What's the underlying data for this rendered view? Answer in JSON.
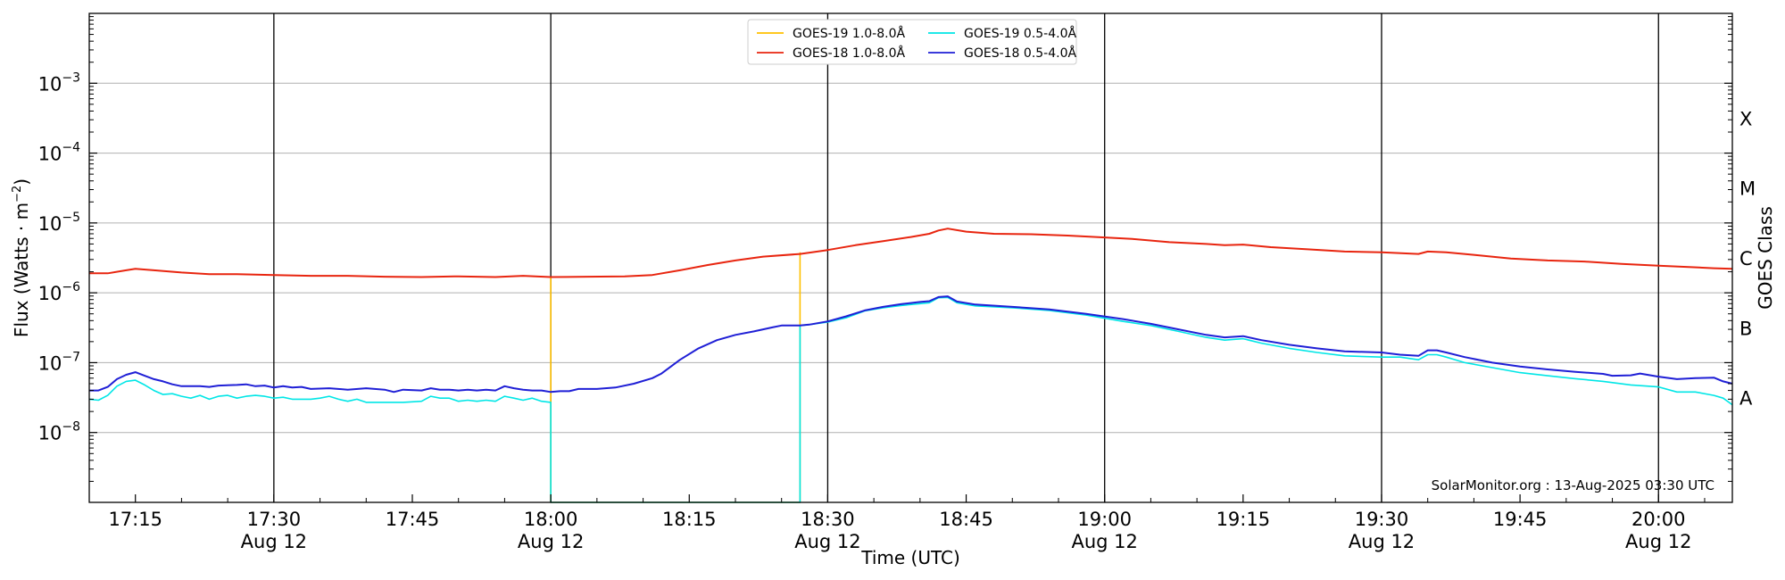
{
  "chart_data": {
    "type": "line",
    "xlabel": "Time (UTC)",
    "ylabel_base": "Flux (Watts · m",
    "ylabel_exp": "−2",
    "ylabel_close": ")",
    "y2label": "GOES Class",
    "x_range_min": [
      1030,
      1208
    ],
    "ylim_log10": [
      -9,
      -2
    ],
    "y_scale": "log",
    "grid": "horizontal",
    "legend_placement": "top-center",
    "watermark": "SolarMonitor.org : 13-Aug-2025 03:30 UTC",
    "x_ticks": [
      {
        "t": 1035,
        "label": "17:15",
        "sub": ""
      },
      {
        "t": 1050,
        "label": "17:30",
        "sub": "Aug 12"
      },
      {
        "t": 1065,
        "label": "17:45",
        "sub": ""
      },
      {
        "t": 1080,
        "label": "18:00",
        "sub": "Aug 12"
      },
      {
        "t": 1095,
        "label": "18:15",
        "sub": ""
      },
      {
        "t": 1110,
        "label": "18:30",
        "sub": "Aug 12"
      },
      {
        "t": 1125,
        "label": "18:45",
        "sub": ""
      },
      {
        "t": 1140,
        "label": "19:00",
        "sub": "Aug 12"
      },
      {
        "t": 1155,
        "label": "19:15",
        "sub": ""
      },
      {
        "t": 1170,
        "label": "19:30",
        "sub": "Aug 12"
      },
      {
        "t": 1185,
        "label": "19:45",
        "sub": ""
      },
      {
        "t": 1200,
        "label": "20:00",
        "sub": "Aug 12"
      }
    ],
    "vlines_min": [
      1050,
      1080,
      1110,
      1140,
      1170,
      1200
    ],
    "y_ticks": [
      {
        "exp": -8,
        "label": "−8"
      },
      {
        "exp": -7,
        "label": "−7"
      },
      {
        "exp": -6,
        "label": "−6"
      },
      {
        "exp": -5,
        "label": "−5"
      },
      {
        "exp": -4,
        "label": "−4"
      },
      {
        "exp": -3,
        "label": "−3"
      }
    ],
    "classes": [
      {
        "label": "A",
        "exp": -7.5
      },
      {
        "label": "B",
        "exp": -6.5
      },
      {
        "label": "C",
        "exp": -5.5
      },
      {
        "label": "M",
        "exp": -4.5
      },
      {
        "label": "X",
        "exp": -3.5
      }
    ],
    "series": [
      {
        "name": "GOES-19 1.0-8.0Å",
        "color": "#FFC000",
        "points": [
          [
            1080,
            1.7e-06
          ],
          [
            1080,
            1e-09
          ],
          [
            1107,
            1e-09
          ],
          [
            1107,
            3.8e-06
          ]
        ]
      },
      {
        "name": "GOES-18 1.0-8.0Å",
        "color": "#E8250F",
        "points": [
          [
            1030,
            1.9e-06
          ],
          [
            1032,
            1.9e-06
          ],
          [
            1034,
            2.1e-06
          ],
          [
            1035,
            2.2e-06
          ],
          [
            1037,
            2.1e-06
          ],
          [
            1040,
            1.95e-06
          ],
          [
            1043,
            1.85e-06
          ],
          [
            1046,
            1.85e-06
          ],
          [
            1050,
            1.8e-06
          ],
          [
            1054,
            1.75e-06
          ],
          [
            1058,
            1.75e-06
          ],
          [
            1062,
            1.7e-06
          ],
          [
            1066,
            1.68e-06
          ],
          [
            1070,
            1.72e-06
          ],
          [
            1074,
            1.68e-06
          ],
          [
            1077,
            1.75e-06
          ],
          [
            1080,
            1.68e-06
          ],
          [
            1084,
            1.7e-06
          ],
          [
            1088,
            1.72e-06
          ],
          [
            1091,
            1.8e-06
          ],
          [
            1094,
            2.1e-06
          ],
          [
            1097,
            2.5e-06
          ],
          [
            1100,
            2.9e-06
          ],
          [
            1103,
            3.3e-06
          ],
          [
            1107,
            3.6e-06
          ],
          [
            1110,
            4.1e-06
          ],
          [
            1113,
            4.8e-06
          ],
          [
            1116,
            5.5e-06
          ],
          [
            1119,
            6.3e-06
          ],
          [
            1121,
            7e-06
          ],
          [
            1122,
            7.8e-06
          ],
          [
            1123,
            8.3e-06
          ],
          [
            1125,
            7.5e-06
          ],
          [
            1128,
            7e-06
          ],
          [
            1132,
            6.9e-06
          ],
          [
            1136,
            6.6e-06
          ],
          [
            1140,
            6.2e-06
          ],
          [
            1143,
            5.9e-06
          ],
          [
            1147,
            5.3e-06
          ],
          [
            1151,
            5e-06
          ],
          [
            1153,
            4.8e-06
          ],
          [
            1155,
            4.9e-06
          ],
          [
            1158,
            4.5e-06
          ],
          [
            1162,
            4.2e-06
          ],
          [
            1166,
            3.9e-06
          ],
          [
            1170,
            3.8e-06
          ],
          [
            1174,
            3.6e-06
          ],
          [
            1175,
            3.9e-06
          ],
          [
            1177,
            3.8e-06
          ],
          [
            1180,
            3.5e-06
          ],
          [
            1184,
            3.1e-06
          ],
          [
            1188,
            2.9e-06
          ],
          [
            1192,
            2.8e-06
          ],
          [
            1196,
            2.6e-06
          ],
          [
            1200,
            2.45e-06
          ],
          [
            1203,
            2.35e-06
          ],
          [
            1206,
            2.25e-06
          ],
          [
            1208,
            2.2e-06
          ]
        ]
      },
      {
        "name": "GOES-19 0.5-4.0Å",
        "color": "#00E6E6",
        "points": [
          [
            1030,
            3e-08
          ],
          [
            1031,
            2.9e-08
          ],
          [
            1032,
            3.4e-08
          ],
          [
            1033,
            4.6e-08
          ],
          [
            1034,
            5.4e-08
          ],
          [
            1035,
            5.6e-08
          ],
          [
            1036,
            4.8e-08
          ],
          [
            1037,
            4e-08
          ],
          [
            1038,
            3.5e-08
          ],
          [
            1039,
            3.6e-08
          ],
          [
            1040,
            3.3e-08
          ],
          [
            1041,
            3.1e-08
          ],
          [
            1042,
            3.4e-08
          ],
          [
            1043,
            3e-08
          ],
          [
            1044,
            3.3e-08
          ],
          [
            1045,
            3.4e-08
          ],
          [
            1046,
            3.1e-08
          ],
          [
            1047,
            3.3e-08
          ],
          [
            1048,
            3.4e-08
          ],
          [
            1049,
            3.3e-08
          ],
          [
            1050,
            3.1e-08
          ],
          [
            1051,
            3.2e-08
          ],
          [
            1052,
            3e-08
          ],
          [
            1054,
            3e-08
          ],
          [
            1055,
            3.1e-08
          ],
          [
            1056,
            3.3e-08
          ],
          [
            1057,
            3e-08
          ],
          [
            1058,
            2.8e-08
          ],
          [
            1059,
            3e-08
          ],
          [
            1060,
            2.7e-08
          ],
          [
            1062,
            2.7e-08
          ],
          [
            1064,
            2.7e-08
          ],
          [
            1066,
            2.8e-08
          ],
          [
            1067,
            3.3e-08
          ],
          [
            1068,
            3.1e-08
          ],
          [
            1069,
            3.1e-08
          ],
          [
            1070,
            2.8e-08
          ],
          [
            1071,
            2.9e-08
          ],
          [
            1072,
            2.8e-08
          ],
          [
            1073,
            2.9e-08
          ],
          [
            1074,
            2.8e-08
          ],
          [
            1075,
            3.3e-08
          ],
          [
            1076,
            3.1e-08
          ],
          [
            1077,
            2.9e-08
          ],
          [
            1078,
            3.1e-08
          ],
          [
            1079,
            2.8e-08
          ],
          [
            1080,
            2.7e-08
          ],
          [
            1080,
            1e-09
          ],
          [
            1107,
            1e-09
          ],
          [
            1107,
            3.4e-07
          ],
          [
            1108,
            3.5e-07
          ],
          [
            1110,
            3.8e-07
          ],
          [
            1112,
            4.4e-07
          ],
          [
            1114,
            5.5e-07
          ],
          [
            1116,
            6.1e-07
          ],
          [
            1118,
            6.6e-07
          ],
          [
            1120,
            7e-07
          ],
          [
            1121,
            7.2e-07
          ],
          [
            1122,
            8.5e-07
          ],
          [
            1123,
            8.6e-07
          ],
          [
            1124,
            7.2e-07
          ],
          [
            1126,
            6.5e-07
          ],
          [
            1130,
            6.1e-07
          ],
          [
            1134,
            5.6e-07
          ],
          [
            1138,
            4.8e-07
          ],
          [
            1142,
            3.9e-07
          ],
          [
            1145,
            3.4e-07
          ],
          [
            1148,
            2.8e-07
          ],
          [
            1151,
            2.3e-07
          ],
          [
            1153,
            2.1e-07
          ],
          [
            1155,
            2.2e-07
          ],
          [
            1157,
            1.9e-07
          ],
          [
            1160,
            1.6e-07
          ],
          [
            1163,
            1.4e-07
          ],
          [
            1166,
            1.25e-07
          ],
          [
            1170,
            1.2e-07
          ],
          [
            1172,
            1.2e-07
          ],
          [
            1174,
            1.1e-07
          ],
          [
            1175,
            1.3e-07
          ],
          [
            1176,
            1.3e-07
          ],
          [
            1177,
            1.2e-07
          ],
          [
            1179,
            1e-07
          ],
          [
            1182,
            8.5e-08
          ],
          [
            1185,
            7.2e-08
          ],
          [
            1188,
            6.5e-08
          ],
          [
            1191,
            5.9e-08
          ],
          [
            1194,
            5.4e-08
          ],
          [
            1197,
            4.8e-08
          ],
          [
            1200,
            4.5e-08
          ],
          [
            1202,
            3.8e-08
          ],
          [
            1204,
            3.8e-08
          ],
          [
            1206,
            3.4e-08
          ],
          [
            1207,
            3.1e-08
          ],
          [
            1208,
            2.5e-08
          ]
        ]
      },
      {
        "name": "GOES-18 0.5-4.0Å",
        "color": "#1F1FD6",
        "points": [
          [
            1030,
            4e-08
          ],
          [
            1031,
            4e-08
          ],
          [
            1032,
            4.5e-08
          ],
          [
            1033,
            5.8e-08
          ],
          [
            1034,
            6.7e-08
          ],
          [
            1035,
            7.3e-08
          ],
          [
            1036,
            6.5e-08
          ],
          [
            1037,
            5.8e-08
          ],
          [
            1038,
            5.4e-08
          ],
          [
            1039,
            4.9e-08
          ],
          [
            1040,
            4.6e-08
          ],
          [
            1042,
            4.6e-08
          ],
          [
            1043,
            4.5e-08
          ],
          [
            1044,
            4.7e-08
          ],
          [
            1046,
            4.8e-08
          ],
          [
            1047,
            4.9e-08
          ],
          [
            1048,
            4.6e-08
          ],
          [
            1049,
            4.7e-08
          ],
          [
            1050,
            4.4e-08
          ],
          [
            1051,
            4.6e-08
          ],
          [
            1052,
            4.4e-08
          ],
          [
            1053,
            4.5e-08
          ],
          [
            1054,
            4.2e-08
          ],
          [
            1056,
            4.3e-08
          ],
          [
            1058,
            4.1e-08
          ],
          [
            1060,
            4.3e-08
          ],
          [
            1062,
            4.1e-08
          ],
          [
            1063,
            3.8e-08
          ],
          [
            1064,
            4.1e-08
          ],
          [
            1066,
            4e-08
          ],
          [
            1067,
            4.3e-08
          ],
          [
            1068,
            4.1e-08
          ],
          [
            1069,
            4.1e-08
          ],
          [
            1070,
            4e-08
          ],
          [
            1071,
            4.1e-08
          ],
          [
            1072,
            4e-08
          ],
          [
            1073,
            4.1e-08
          ],
          [
            1074,
            4e-08
          ],
          [
            1075,
            4.6e-08
          ],
          [
            1076,
            4.3e-08
          ],
          [
            1077,
            4.1e-08
          ],
          [
            1078,
            4e-08
          ],
          [
            1079,
            4e-08
          ],
          [
            1080,
            3.8e-08
          ],
          [
            1081,
            3.9e-08
          ],
          [
            1082,
            3.9e-08
          ],
          [
            1083,
            4.2e-08
          ],
          [
            1085,
            4.2e-08
          ],
          [
            1087,
            4.4e-08
          ],
          [
            1089,
            5e-08
          ],
          [
            1091,
            6e-08
          ],
          [
            1092,
            7e-08
          ],
          [
            1094,
            1.1e-07
          ],
          [
            1096,
            1.6e-07
          ],
          [
            1098,
            2.1e-07
          ],
          [
            1100,
            2.5e-07
          ],
          [
            1102,
            2.8e-07
          ],
          [
            1104,
            3.2e-07
          ],
          [
            1105,
            3.4e-07
          ],
          [
            1107,
            3.4e-07
          ],
          [
            1108,
            3.5e-07
          ],
          [
            1110,
            3.9e-07
          ],
          [
            1112,
            4.6e-07
          ],
          [
            1114,
            5.6e-07
          ],
          [
            1116,
            6.3e-07
          ],
          [
            1118,
            6.9e-07
          ],
          [
            1120,
            7.4e-07
          ],
          [
            1121,
            7.6e-07
          ],
          [
            1122,
            8.7e-07
          ],
          [
            1123,
            8.9e-07
          ],
          [
            1124,
            7.5e-07
          ],
          [
            1126,
            6.8e-07
          ],
          [
            1130,
            6.3e-07
          ],
          [
            1134,
            5.8e-07
          ],
          [
            1138,
            5e-07
          ],
          [
            1142,
            4.2e-07
          ],
          [
            1145,
            3.6e-07
          ],
          [
            1148,
            3e-07
          ],
          [
            1151,
            2.5e-07
          ],
          [
            1153,
            2.3e-07
          ],
          [
            1155,
            2.4e-07
          ],
          [
            1157,
            2.1e-07
          ],
          [
            1160,
            1.8e-07
          ],
          [
            1163,
            1.6e-07
          ],
          [
            1166,
            1.45e-07
          ],
          [
            1170,
            1.4e-07
          ],
          [
            1172,
            1.3e-07
          ],
          [
            1174,
            1.25e-07
          ],
          [
            1175,
            1.5e-07
          ],
          [
            1176,
            1.5e-07
          ],
          [
            1177,
            1.4e-07
          ],
          [
            1179,
            1.2e-07
          ],
          [
            1182,
            1e-07
          ],
          [
            1185,
            8.8e-08
          ],
          [
            1188,
            8e-08
          ],
          [
            1191,
            7.4e-08
          ],
          [
            1194,
            6.9e-08
          ],
          [
            1195,
            6.5e-08
          ],
          [
            1197,
            6.6e-08
          ],
          [
            1198,
            7e-08
          ],
          [
            1200,
            6.3e-08
          ],
          [
            1202,
            5.8e-08
          ],
          [
            1204,
            6e-08
          ],
          [
            1206,
            6.1e-08
          ],
          [
            1207,
            5.4e-08
          ],
          [
            1208,
            5e-08
          ]
        ]
      }
    ]
  }
}
